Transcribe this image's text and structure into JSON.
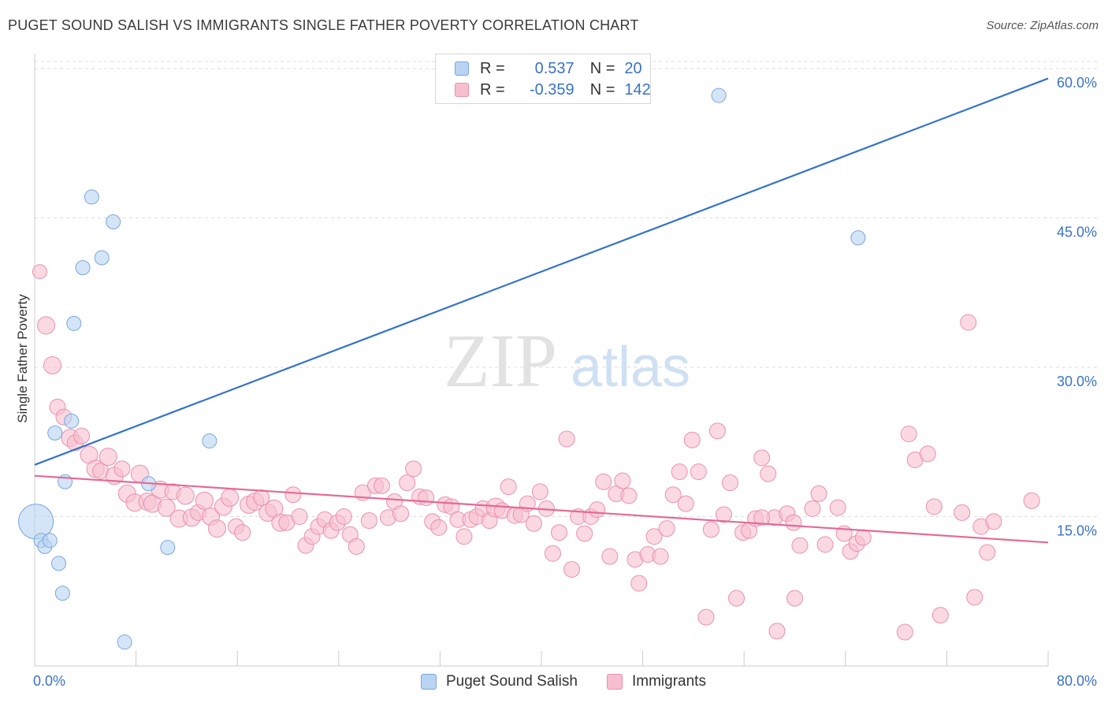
{
  "header": {
    "title": "PUGET SOUND SALISH VS IMMIGRANTS SINGLE FATHER POVERTY CORRELATION CHART",
    "source": "Source: ZipAtlas.com"
  },
  "watermark": {
    "zip": "ZIP",
    "atlas": "atlas"
  },
  "colors": {
    "blue_fill": "#b9d3f3",
    "blue_stroke": "#7aa6df",
    "blue_line": "#3573c8",
    "pink_fill": "#f6bfd0",
    "pink_stroke": "#ec8fae",
    "pink_line": "#e46a96",
    "axis_label": "#3a72c8",
    "grid": "#dddddd"
  },
  "legend": {
    "rows": [
      {
        "r_label": "R =",
        "r_value": "0.537",
        "n_label": "N =",
        "n_value": "20"
      },
      {
        "r_label": "R =",
        "r_value": "-0.359",
        "n_label": "N =",
        "n_value": "142"
      }
    ]
  },
  "chart_data": {
    "type": "scatter",
    "xlabel": "",
    "ylabel": "Single Father Poverty",
    "xlim": [
      0,
      80
    ],
    "ylim": [
      0,
      61.5
    ],
    "x_tick_labels": [
      "0.0%",
      "80.0%"
    ],
    "y_ticks": [
      15,
      30,
      45,
      60
    ],
    "y_tick_labels": [
      "15.0%",
      "30.0%",
      "45.0%",
      "60.0%"
    ],
    "grid": "horizontal dashed",
    "legend_position": "top-center and bottom",
    "series": [
      {
        "name": "Puget Sound Salish",
        "color": "blue",
        "trend": {
          "x": [
            0,
            80
          ],
          "y": [
            20.2,
            59.0
          ]
        },
        "points": [
          [
            0.1,
            14.5,
            22
          ],
          [
            0.5,
            12.6,
            9
          ],
          [
            0.8,
            12.0,
            9
          ],
          [
            1.2,
            12.6,
            9
          ],
          [
            1.6,
            23.4,
            9
          ],
          [
            1.9,
            10.3,
            9
          ],
          [
            2.2,
            7.3,
            9
          ],
          [
            2.4,
            18.5,
            9
          ],
          [
            2.9,
            24.6,
            9
          ],
          [
            3.1,
            34.4,
            9
          ],
          [
            3.8,
            40.0,
            9
          ],
          [
            4.5,
            47.1,
            9
          ],
          [
            5.3,
            41.0,
            9
          ],
          [
            6.2,
            44.6,
            9
          ],
          [
            7.1,
            2.4,
            9
          ],
          [
            9.0,
            18.3,
            9
          ],
          [
            10.5,
            11.9,
            9
          ],
          [
            13.8,
            22.6,
            9
          ],
          [
            54.0,
            57.3,
            9
          ],
          [
            65.0,
            43.0,
            9
          ]
        ]
      },
      {
        "name": "Immigrants",
        "color": "pink",
        "trend": {
          "x": [
            0,
            80
          ],
          "y": [
            19.1,
            12.4
          ]
        },
        "points": [
          [
            0.4,
            39.6,
            9
          ],
          [
            0.9,
            34.2,
            11
          ],
          [
            1.4,
            30.2,
            11
          ],
          [
            1.8,
            26.0,
            10
          ],
          [
            2.3,
            25.0,
            10
          ],
          [
            2.8,
            22.9,
            11
          ],
          [
            3.2,
            22.4,
            10
          ],
          [
            3.7,
            23.1,
            10
          ],
          [
            4.3,
            21.2,
            11
          ],
          [
            4.8,
            19.8,
            11
          ],
          [
            5.2,
            19.6,
            10
          ],
          [
            5.8,
            21.0,
            11
          ],
          [
            6.3,
            19.1,
            11
          ],
          [
            6.9,
            19.8,
            10
          ],
          [
            7.3,
            17.3,
            11
          ],
          [
            7.9,
            16.4,
            11
          ],
          [
            8.3,
            19.3,
            11
          ],
          [
            8.9,
            16.5,
            11
          ],
          [
            9.3,
            16.3,
            11
          ],
          [
            9.9,
            17.7,
            11
          ],
          [
            10.4,
            15.9,
            11
          ],
          [
            10.9,
            17.5,
            10
          ],
          [
            11.4,
            14.8,
            11
          ],
          [
            11.9,
            17.1,
            11
          ],
          [
            12.4,
            14.9,
            11
          ],
          [
            12.9,
            15.4,
            10
          ],
          [
            13.4,
            16.6,
            11
          ],
          [
            13.9,
            15.0,
            11
          ],
          [
            14.4,
            13.8,
            11
          ],
          [
            14.9,
            16.0,
            11
          ],
          [
            15.4,
            16.9,
            11
          ],
          [
            15.9,
            14.0,
            10
          ],
          [
            16.4,
            13.4,
            10
          ],
          [
            16.9,
            16.2,
            11
          ],
          [
            17.4,
            16.5,
            11
          ],
          [
            17.9,
            16.9,
            10
          ],
          [
            18.4,
            15.4,
            11
          ],
          [
            18.9,
            15.8,
            11
          ],
          [
            19.4,
            14.4,
            11
          ],
          [
            19.9,
            14.4,
            10
          ],
          [
            20.4,
            17.2,
            10
          ],
          [
            20.9,
            15.0,
            10
          ],
          [
            21.4,
            12.1,
            10
          ],
          [
            21.9,
            13.0,
            10
          ],
          [
            22.4,
            14.0,
            10
          ],
          [
            22.9,
            14.7,
            10
          ],
          [
            23.4,
            13.6,
            10
          ],
          [
            23.9,
            14.4,
            10
          ],
          [
            24.4,
            15.0,
            10
          ],
          [
            24.9,
            13.2,
            10
          ],
          [
            25.4,
            12.0,
            10
          ],
          [
            25.9,
            17.4,
            10
          ],
          [
            26.4,
            14.6,
            10
          ],
          [
            26.9,
            18.1,
            10
          ],
          [
            27.4,
            18.1,
            10
          ],
          [
            27.9,
            14.9,
            10
          ],
          [
            28.4,
            16.5,
            10
          ],
          [
            28.9,
            15.3,
            10
          ],
          [
            29.4,
            18.4,
            10
          ],
          [
            29.9,
            19.8,
            10
          ],
          [
            30.4,
            17.0,
            10
          ],
          [
            30.9,
            16.9,
            10
          ],
          [
            31.4,
            14.5,
            10
          ],
          [
            31.9,
            13.9,
            10
          ],
          [
            32.4,
            16.2,
            10
          ],
          [
            32.9,
            16.0,
            10
          ],
          [
            33.4,
            14.7,
            10
          ],
          [
            33.9,
            13.0,
            10
          ],
          [
            34.4,
            14.7,
            10
          ],
          [
            34.9,
            15.0,
            10
          ],
          [
            35.4,
            15.8,
            10
          ],
          [
            35.9,
            14.6,
            10
          ],
          [
            36.4,
            15.9,
            12
          ],
          [
            36.9,
            15.6,
            10
          ],
          [
            37.4,
            18.0,
            10
          ],
          [
            37.9,
            15.1,
            10
          ],
          [
            38.4,
            15.2,
            10
          ],
          [
            38.9,
            16.3,
            10
          ],
          [
            39.4,
            14.3,
            10
          ],
          [
            39.9,
            17.5,
            10
          ],
          [
            40.4,
            15.8,
            10
          ],
          [
            40.9,
            11.3,
            10
          ],
          [
            41.4,
            13.4,
            10
          ],
          [
            42.0,
            22.8,
            10
          ],
          [
            42.4,
            9.7,
            10
          ],
          [
            42.9,
            15.0,
            10
          ],
          [
            43.4,
            13.3,
            10
          ],
          [
            43.9,
            15.0,
            10
          ],
          [
            44.4,
            15.7,
            10
          ],
          [
            44.9,
            18.5,
            10
          ],
          [
            45.4,
            11.0,
            10
          ],
          [
            45.9,
            17.3,
            10
          ],
          [
            46.4,
            18.6,
            10
          ],
          [
            46.9,
            17.1,
            10
          ],
          [
            47.4,
            10.7,
            10
          ],
          [
            47.7,
            8.3,
            10
          ],
          [
            48.4,
            11.2,
            10
          ],
          [
            48.9,
            13.0,
            10
          ],
          [
            49.4,
            11.0,
            10
          ],
          [
            49.9,
            13.8,
            10
          ],
          [
            50.4,
            17.2,
            10
          ],
          [
            50.9,
            19.5,
            10
          ],
          [
            51.4,
            16.3,
            10
          ],
          [
            51.9,
            22.7,
            10
          ],
          [
            52.4,
            19.5,
            10
          ],
          [
            53.0,
            4.9,
            10
          ],
          [
            53.4,
            13.7,
            10
          ],
          [
            53.9,
            23.6,
            10
          ],
          [
            54.4,
            15.2,
            10
          ],
          [
            54.9,
            18.4,
            10
          ],
          [
            55.4,
            6.8,
            10
          ],
          [
            55.9,
            13.4,
            10
          ],
          [
            56.4,
            13.6,
            10
          ],
          [
            56.9,
            14.8,
            10
          ],
          [
            57.4,
            20.9,
            10
          ],
          [
            57.9,
            19.3,
            10
          ],
          [
            58.4,
            14.9,
            10
          ],
          [
            58.6,
            3.5,
            10
          ],
          [
            59.4,
            15.3,
            10
          ],
          [
            59.9,
            14.4,
            10
          ],
          [
            60.0,
            6.8,
            10
          ],
          [
            60.4,
            12.1,
            10
          ],
          [
            61.4,
            15.8,
            10
          ],
          [
            61.9,
            17.3,
            10
          ],
          [
            62.4,
            12.2,
            10
          ],
          [
            63.4,
            15.9,
            10
          ],
          [
            63.9,
            13.3,
            10
          ],
          [
            64.4,
            11.5,
            10
          ],
          [
            64.9,
            12.3,
            10
          ],
          [
            65.4,
            12.9,
            10
          ],
          [
            68.7,
            3.4,
            10
          ],
          [
            69.0,
            23.3,
            10
          ],
          [
            69.5,
            20.7,
            10
          ],
          [
            70.5,
            21.3,
            10
          ],
          [
            71.0,
            16.0,
            10
          ],
          [
            71.5,
            5.1,
            10
          ],
          [
            73.2,
            15.4,
            10
          ],
          [
            73.7,
            34.5,
            10
          ],
          [
            74.2,
            6.9,
            10
          ],
          [
            74.7,
            14.0,
            10
          ],
          [
            75.2,
            11.4,
            10
          ],
          [
            75.7,
            14.5,
            10
          ],
          [
            78.7,
            16.6,
            10
          ],
          [
            57.4,
            14.9,
            10
          ]
        ]
      }
    ]
  },
  "bottom_legend": {
    "series_1": "Puget Sound Salish",
    "series_2": "Immigrants"
  }
}
